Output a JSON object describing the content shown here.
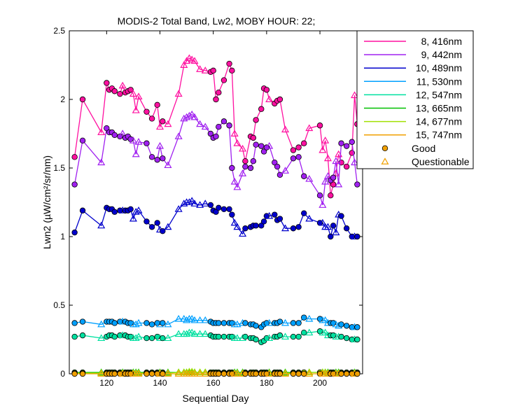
{
  "chart_data": {
    "type": "line",
    "title": "MODIS-2 Total Band, Lw2, MOBY HOUR: 22;",
    "xlabel": "Sequential Day",
    "ylabel": "Lwn2 (µW/cm²/sr/nm)",
    "xlim": [
      106,
      216
    ],
    "ylim": [
      0,
      2.5
    ],
    "x_ticks": [
      120,
      140,
      160,
      180,
      200
    ],
    "y_ticks": [
      0,
      0.5,
      1,
      1.5,
      2,
      2.5
    ],
    "y_tick_labels": [
      "0",
      "0.5",
      "1",
      "1.5",
      "2",
      "2.5"
    ],
    "grid": false,
    "legend_position": "outside-right",
    "markers": {
      "good": {
        "label": "Good",
        "shape": "circle",
        "color": "#f0a000"
      },
      "questionable": {
        "label": "Questionable",
        "shape": "triangle",
        "color": "#f0a000"
      }
    },
    "x": [
      108,
      111,
      118,
      120,
      121,
      122,
      123,
      125,
      126,
      127,
      128,
      129,
      130,
      131,
      132,
      135,
      137,
      139,
      140,
      141,
      143,
      147,
      149,
      150,
      151,
      152,
      153,
      155,
      157,
      159,
      160,
      161,
      162,
      164,
      166,
      167,
      168,
      169,
      171,
      172,
      174,
      175,
      176,
      178,
      179,
      180,
      181,
      183,
      184,
      185,
      187,
      190,
      192,
      194,
      196,
      200,
      201,
      202,
      203,
      204,
      205,
      206,
      207,
      208,
      210,
      212,
      213,
      214
    ],
    "quality": [
      "G",
      "G",
      "Q",
      "G",
      "G",
      "G",
      "G",
      "G",
      "Q",
      "G",
      "G",
      "G",
      "Q",
      "Q",
      "Q",
      "G",
      "G",
      "G",
      "Q",
      "G",
      "Q",
      "Q",
      "Q",
      "Q",
      "Q",
      "Q",
      "Q",
      "Q",
      "Q",
      "G",
      "G",
      "G",
      "G",
      "G",
      "G",
      "G",
      "Q",
      "Q",
      "Q",
      "G",
      "G",
      "G",
      "G",
      "G",
      "G",
      "G",
      "Q",
      "G",
      "G",
      "G",
      "Q",
      "G",
      "G",
      "G",
      "Q",
      "G",
      "Q",
      "Q",
      "Q",
      "G",
      "G",
      "Q",
      "Q",
      "G",
      "G",
      "G",
      "Q",
      "G"
    ],
    "series": [
      {
        "name": "8, 416nm",
        "color": "#ff10a0",
        "values": [
          1.58,
          2.0,
          1.76,
          2.12,
          2.07,
          2.08,
          2.06,
          2.04,
          2.1,
          2.05,
          2.06,
          2.07,
          2.04,
          1.92,
          2.02,
          1.91,
          1.86,
          1.96,
          1.8,
          1.84,
          1.82,
          2.04,
          2.25,
          2.28,
          2.3,
          2.29,
          2.28,
          2.22,
          2.21,
          2.2,
          2.21,
          2.0,
          2.05,
          2.14,
          2.26,
          2.21,
          1.75,
          1.68,
          1.64,
          1.55,
          1.73,
          1.72,
          1.85,
          1.93,
          2.08,
          2.07,
          2.0,
          1.97,
          1.99,
          2.0,
          1.78,
          1.63,
          1.65,
          1.68,
          1.79,
          1.81,
          1.63,
          1.7,
          1.57,
          1.3,
          1.38,
          1.46,
          1.6,
          1.54,
          1.51,
          1.61,
          2.03,
          1.82
        ]
      },
      {
        "name": "9, 442nm",
        "color": "#a020f0",
        "values": [
          1.38,
          1.7,
          1.54,
          1.79,
          1.76,
          1.76,
          1.74,
          1.73,
          1.75,
          1.72,
          1.73,
          1.71,
          1.7,
          1.6,
          1.69,
          1.68,
          1.58,
          1.56,
          1.66,
          1.57,
          1.52,
          1.73,
          1.86,
          1.87,
          1.88,
          1.89,
          1.87,
          1.82,
          1.8,
          1.75,
          1.72,
          1.73,
          1.8,
          1.84,
          1.81,
          1.5,
          1.4,
          1.36,
          1.46,
          1.51,
          1.5,
          1.55,
          1.67,
          1.66,
          1.62,
          1.65,
          1.66,
          1.54,
          1.51,
          1.45,
          1.48,
          1.57,
          1.58,
          1.44,
          1.42,
          1.3,
          1.23,
          1.4,
          1.44,
          1.41,
          1.43,
          1.55,
          1.38,
          1.68,
          1.66,
          1.69,
          1.54,
          1.38
        ]
      },
      {
        "name": "10, 489nm",
        "color": "#0000cc",
        "values": [
          1.03,
          1.19,
          1.08,
          1.21,
          1.2,
          1.2,
          1.18,
          1.19,
          1.19,
          1.19,
          1.19,
          1.2,
          1.13,
          1.18,
          1.19,
          1.11,
          1.07,
          1.1,
          1.05,
          1.04,
          1.07,
          1.2,
          1.24,
          1.25,
          1.25,
          1.26,
          1.24,
          1.23,
          1.24,
          1.23,
          1.19,
          1.18,
          1.21,
          1.2,
          1.2,
          1.16,
          1.1,
          1.07,
          1.02,
          1.06,
          1.07,
          1.08,
          1.08,
          1.08,
          1.11,
          1.15,
          1.15,
          1.16,
          1.12,
          1.13,
          1.06,
          1.06,
          1.07,
          1.17,
          1.13,
          1.1,
          1.1,
          1.07,
          1.07,
          1.0,
          1.08,
          1.03,
          1.16,
          1.15,
          1.06,
          1.0,
          1.0,
          1.0
        ]
      },
      {
        "name": "11, 530nm",
        "color": "#00a0ff",
        "values": [
          0.37,
          0.38,
          0.36,
          0.38,
          0.38,
          0.38,
          0.37,
          0.38,
          0.38,
          0.38,
          0.37,
          0.37,
          0.36,
          0.36,
          0.37,
          0.37,
          0.36,
          0.37,
          0.36,
          0.37,
          0.36,
          0.4,
          0.4,
          0.39,
          0.4,
          0.4,
          0.39,
          0.39,
          0.39,
          0.38,
          0.37,
          0.37,
          0.37,
          0.37,
          0.37,
          0.37,
          0.36,
          0.36,
          0.37,
          0.37,
          0.36,
          0.36,
          0.35,
          0.34,
          0.36,
          0.37,
          0.37,
          0.37,
          0.37,
          0.38,
          0.37,
          0.37,
          0.37,
          0.41,
          0.4,
          0.4,
          0.39,
          0.39,
          0.37,
          0.37,
          0.37,
          0.36,
          0.35,
          0.36,
          0.35,
          0.34,
          0.34,
          0.34
        ]
      },
      {
        "name": "12, 547nm",
        "color": "#00e0a0",
        "values": [
          0.27,
          0.28,
          0.26,
          0.27,
          0.28,
          0.28,
          0.27,
          0.28,
          0.28,
          0.28,
          0.27,
          0.27,
          0.26,
          0.26,
          0.27,
          0.26,
          0.26,
          0.27,
          0.26,
          0.26,
          0.26,
          0.29,
          0.29,
          0.29,
          0.3,
          0.3,
          0.29,
          0.29,
          0.29,
          0.28,
          0.27,
          0.27,
          0.27,
          0.27,
          0.27,
          0.27,
          0.26,
          0.26,
          0.26,
          0.27,
          0.26,
          0.26,
          0.25,
          0.23,
          0.24,
          0.26,
          0.26,
          0.27,
          0.27,
          0.28,
          0.27,
          0.27,
          0.27,
          0.3,
          0.3,
          0.31,
          0.3,
          0.3,
          0.28,
          0.28,
          0.28,
          0.27,
          0.27,
          0.27,
          0.26,
          0.25,
          0.25,
          0.25
        ]
      },
      {
        "name": "13, 665nm",
        "color": "#00c000",
        "values": [
          0.01,
          0.01,
          0.01,
          0.01,
          0.01,
          0.01,
          0.01,
          0.01,
          0.01,
          0.01,
          0.01,
          0.01,
          0.01,
          0.01,
          0.01,
          0.01,
          0.01,
          0.01,
          0.01,
          0.01,
          0.01,
          0.01,
          0.01,
          0.01,
          0.01,
          0.01,
          0.01,
          0.01,
          0.01,
          0.01,
          0.01,
          0.01,
          0.01,
          0.01,
          0.01,
          0.01,
          0.01,
          0.01,
          0.01,
          0.01,
          0.01,
          0.01,
          0.01,
          0.01,
          0.01,
          0.01,
          0.01,
          0.01,
          0.01,
          0.01,
          0.01,
          0.01,
          0.01,
          0.01,
          0.01,
          0.01,
          0.01,
          0.01,
          0.01,
          0.01,
          0.01,
          0.01,
          0.01,
          0.01,
          0.01,
          0.01,
          0.01,
          0.01
        ]
      },
      {
        "name": "14, 677nm",
        "color": "#a0e000",
        "values": [
          0.005,
          0.005,
          0.005,
          0.005,
          0.005,
          0.005,
          0.005,
          0.005,
          0.005,
          0.005,
          0.005,
          0.005,
          0.005,
          0.005,
          0.005,
          0.005,
          0.005,
          0.005,
          0.005,
          0.005,
          0.005,
          0.01,
          0.01,
          0.01,
          0.015,
          0.015,
          0.01,
          0.01,
          0.01,
          0.005,
          0.005,
          0.005,
          0.005,
          0.005,
          0.005,
          0.005,
          0.005,
          0.005,
          0.005,
          0.005,
          0.005,
          0.005,
          0.005,
          0.005,
          0.005,
          0.005,
          0.005,
          0.005,
          0.005,
          0.005,
          0.005,
          0.005,
          0.005,
          0.01,
          0.01,
          0.01,
          0.01,
          0.01,
          0.005,
          0.005,
          0.005,
          0.005,
          0.005,
          0.005,
          0.005,
          0.005,
          0.005,
          0.005
        ]
      },
      {
        "name": "15, 747nm",
        "color": "#f0a000",
        "values": [
          0.0,
          0.0,
          0.0,
          0.0,
          0.0,
          0.0,
          0.0,
          0.0,
          0.0,
          0.0,
          0.0,
          0.0,
          0.0,
          0.0,
          0.0,
          0.0,
          0.0,
          0.0,
          0.0,
          0.0,
          0.0,
          0.0,
          0.0,
          0.0,
          0.0,
          0.0,
          0.0,
          0.0,
          0.0,
          0.0,
          0.0,
          0.0,
          0.0,
          0.0,
          0.0,
          0.0,
          0.0,
          0.0,
          0.0,
          0.0,
          0.0,
          0.0,
          0.0,
          0.0,
          0.0,
          0.0,
          0.0,
          0.0,
          0.0,
          0.0,
          0.0,
          0.0,
          0.0,
          0.0,
          0.0,
          0.0,
          0.0,
          0.0,
          0.0,
          0.0,
          0.0,
          0.0,
          0.0,
          0.0,
          0.0,
          0.0,
          0.0,
          0.0
        ]
      }
    ]
  }
}
